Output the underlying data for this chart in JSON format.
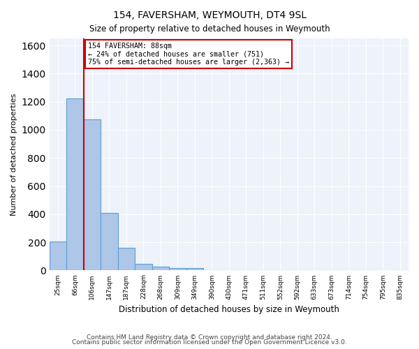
{
  "title": "154, FAVERSHAM, WEYMOUTH, DT4 9SL",
  "subtitle": "Size of property relative to detached houses in Weymouth",
  "xlabel": "Distribution of detached houses by size in Weymouth",
  "ylabel": "Number of detached properties",
  "bar_values": [
    205,
    1225,
    1075,
    410,
    160,
    45,
    25,
    15,
    15,
    0,
    0,
    0,
    0,
    0,
    0,
    0,
    0,
    0,
    0,
    0,
    0
  ],
  "categories": [
    "25sqm",
    "66sqm",
    "106sqm",
    "147sqm",
    "187sqm",
    "228sqm",
    "268sqm",
    "309sqm",
    "349sqm",
    "390sqm",
    "430sqm",
    "471sqm",
    "511sqm",
    "552sqm",
    "592sqm",
    "633sqm",
    "673sqm",
    "714sqm",
    "754sqm",
    "795sqm",
    "835sqm"
  ],
  "bar_color": "#aec6e8",
  "bar_edge_color": "#5a9fd4",
  "vline_x": 1.5,
  "vline_color": "#cc0000",
  "annotation_text": "154 FAVERSHAM: 88sqm\n← 24% of detached houses are smaller (751)\n75% of semi-detached houses are larger (2,363) →",
  "annotation_box_color": "#cc0000",
  "ylim": [
    0,
    1650
  ],
  "yticks": [
    0,
    200,
    400,
    600,
    800,
    1000,
    1200,
    1400,
    1600
  ],
  "background_color": "#eef2fa",
  "grid_color": "#ffffff",
  "footer1": "Contains HM Land Registry data © Crown copyright and database right 2024.",
  "footer2": "Contains public sector information licensed under the Open Government Licence v3.0."
}
